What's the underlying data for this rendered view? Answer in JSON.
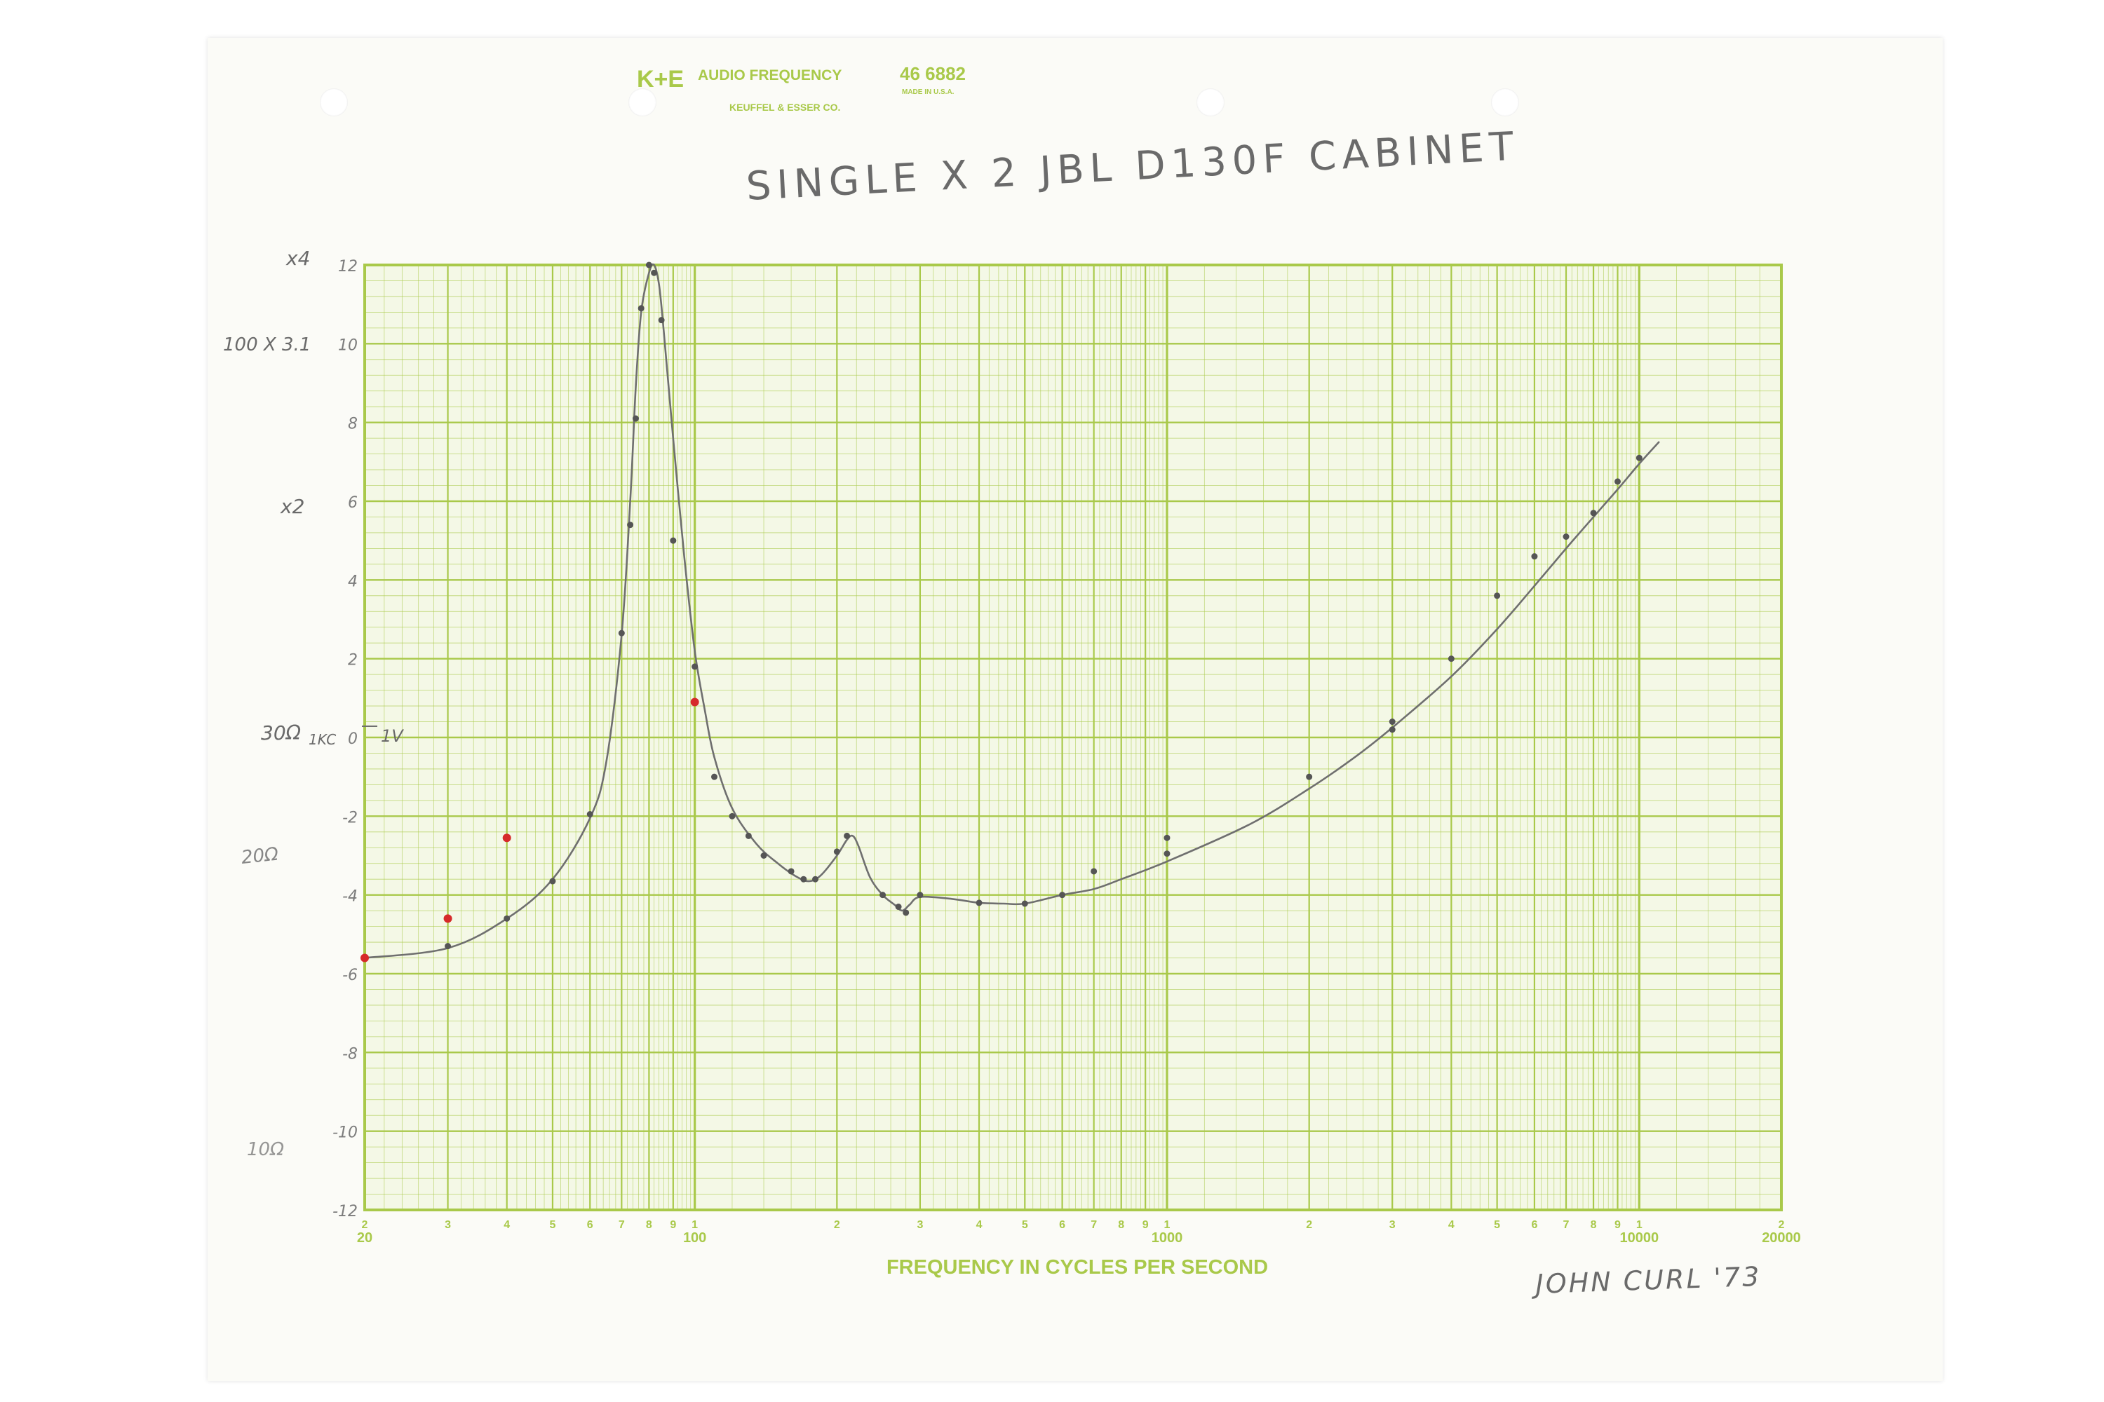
{
  "header": {
    "logo": "K+E",
    "paper_title": "AUDIO FREQUENCY",
    "maker": "KEUFFEL & ESSER CO.",
    "catalog_no": "46 6882",
    "made_in": "MADE IN U.S.A."
  },
  "colors": {
    "grid_green": "#a9c94a",
    "pencil": "#6f6f6f",
    "red_dot": "#d62a2a"
  },
  "chart_data": {
    "type": "line",
    "title": "SINGLE X 2 JBL D130F CABINET",
    "xlabel": "FREQUENCY IN CYCLES PER SECOND",
    "x_scale": "log",
    "xlim": [
      20,
      20000
    ],
    "ylim": [
      -12,
      12
    ],
    "x_ticks": {
      "major": [
        {
          "value": 20,
          "label": "20"
        },
        {
          "value": 100,
          "label": "100"
        },
        {
          "value": 1000,
          "label": "1000"
        },
        {
          "value": 10000,
          "label": "10000"
        },
        {
          "value": 20000,
          "label": "20000"
        }
      ],
      "minor": [
        {
          "value": 20,
          "label": "2"
        },
        {
          "value": 30,
          "label": "3"
        },
        {
          "value": 40,
          "label": "4"
        },
        {
          "value": 50,
          "label": "5"
        },
        {
          "value": 60,
          "label": "6"
        },
        {
          "value": 70,
          "label": "7"
        },
        {
          "value": 80,
          "label": "8"
        },
        {
          "value": 90,
          "label": "9"
        },
        {
          "value": 100,
          "label": "1"
        },
        {
          "value": 200,
          "label": "2"
        },
        {
          "value": 300,
          "label": "3"
        },
        {
          "value": 400,
          "label": "4"
        },
        {
          "value": 500,
          "label": "5"
        },
        {
          "value": 600,
          "label": "6"
        },
        {
          "value": 700,
          "label": "7"
        },
        {
          "value": 800,
          "label": "8"
        },
        {
          "value": 900,
          "label": "9"
        },
        {
          "value": 1000,
          "label": "1"
        },
        {
          "value": 2000,
          "label": "2"
        },
        {
          "value": 3000,
          "label": "3"
        },
        {
          "value": 4000,
          "label": "4"
        },
        {
          "value": 5000,
          "label": "5"
        },
        {
          "value": 6000,
          "label": "6"
        },
        {
          "value": 7000,
          "label": "7"
        },
        {
          "value": 8000,
          "label": "8"
        },
        {
          "value": 9000,
          "label": "9"
        },
        {
          "value": 10000,
          "label": "1"
        },
        {
          "value": 20000,
          "label": "2"
        }
      ]
    },
    "y_ticks": [
      {
        "value": 12,
        "label": "12"
      },
      {
        "value": 10,
        "label": "10"
      },
      {
        "value": 8,
        "label": "8"
      },
      {
        "value": 6,
        "label": "6"
      },
      {
        "value": 4,
        "label": "4"
      },
      {
        "value": 2,
        "label": "2"
      },
      {
        "value": 0,
        "label": "0"
      },
      {
        "value": -2,
        "label": "-2"
      },
      {
        "value": -4,
        "label": "-4"
      },
      {
        "value": -6,
        "label": "-6"
      },
      {
        "value": -8,
        "label": "-8"
      },
      {
        "value": -10,
        "label": "-10"
      },
      {
        "value": -12,
        "label": "-12"
      }
    ],
    "grid": true,
    "series": [
      {
        "color": "#6f6f6f",
        "points": [
          [
            20,
            -5.6
          ],
          [
            30,
            -5.35
          ],
          [
            40,
            -4.6
          ],
          [
            50,
            -3.6
          ],
          [
            60,
            -2.05
          ],
          [
            65,
            -0.6
          ],
          [
            70,
            2.6
          ],
          [
            73,
            6.0
          ],
          [
            75,
            8.9
          ],
          [
            77,
            10.8
          ],
          [
            80,
            11.8
          ],
          [
            82,
            12.0
          ],
          [
            84,
            11.5
          ],
          [
            86,
            10.3
          ],
          [
            90,
            7.6
          ],
          [
            95,
            4.6
          ],
          [
            100,
            2.2
          ],
          [
            105,
            0.7
          ],
          [
            110,
            -0.5
          ],
          [
            120,
            -1.8
          ],
          [
            135,
            -2.7
          ],
          [
            150,
            -3.2
          ],
          [
            165,
            -3.55
          ],
          [
            175,
            -3.65
          ],
          [
            185,
            -3.5
          ],
          [
            200,
            -3.0
          ],
          [
            210,
            -2.6
          ],
          [
            216,
            -2.5
          ],
          [
            222,
            -2.75
          ],
          [
            235,
            -3.55
          ],
          [
            250,
            -4.0
          ],
          [
            265,
            -4.25
          ],
          [
            275,
            -4.4
          ],
          [
            285,
            -4.25
          ],
          [
            300,
            -4.05
          ],
          [
            350,
            -4.1
          ],
          [
            400,
            -4.2
          ],
          [
            450,
            -4.22
          ],
          [
            500,
            -4.22
          ],
          [
            600,
            -4.0
          ],
          [
            700,
            -3.85
          ],
          [
            800,
            -3.6
          ],
          [
            1000,
            -3.15
          ],
          [
            1500,
            -2.2
          ],
          [
            2000,
            -1.3
          ],
          [
            2500,
            -0.5
          ],
          [
            3000,
            0.25
          ],
          [
            4000,
            1.55
          ],
          [
            5000,
            2.75
          ],
          [
            6000,
            3.85
          ],
          [
            7000,
            4.8
          ],
          [
            8000,
            5.6
          ],
          [
            9000,
            6.3
          ],
          [
            10000,
            6.95
          ],
          [
            11000,
            7.5
          ]
        ]
      }
    ],
    "measured_points": [
      [
        20,
        -5.6
      ],
      [
        30,
        -5.3
      ],
      [
        40,
        -4.6
      ],
      [
        50,
        -3.65
      ],
      [
        60,
        -1.95
      ],
      [
        70,
        2.65
      ],
      [
        73,
        5.4
      ],
      [
        75,
        8.1
      ],
      [
        77,
        10.9
      ],
      [
        80,
        12.0
      ],
      [
        82,
        11.8
      ],
      [
        85,
        10.6
      ],
      [
        90,
        5.0
      ],
      [
        100,
        1.8
      ],
      [
        110,
        -1.0
      ],
      [
        120,
        -2.0
      ],
      [
        130,
        -2.5
      ],
      [
        140,
        -3.0
      ],
      [
        160,
        -3.4
      ],
      [
        170,
        -3.6
      ],
      [
        180,
        -3.6
      ],
      [
        200,
        -2.9
      ],
      [
        210,
        -2.5
      ],
      [
        250,
        -4.0
      ],
      [
        270,
        -4.3
      ],
      [
        280,
        -4.45
      ],
      [
        300,
        -4.0
      ],
      [
        400,
        -4.2
      ],
      [
        500,
        -4.22
      ],
      [
        600,
        -4.0
      ],
      [
        700,
        -3.4
      ],
      [
        1000,
        -2.55
      ],
      [
        1000,
        -2.95
      ],
      [
        2000,
        -1.0
      ],
      [
        3000,
        0.4
      ],
      [
        3000,
        0.2
      ],
      [
        4000,
        2.0
      ],
      [
        5000,
        3.6
      ],
      [
        6000,
        4.6
      ],
      [
        7000,
        5.1
      ],
      [
        8000,
        5.7
      ],
      [
        9000,
        6.5
      ],
      [
        10000,
        7.1
      ]
    ],
    "red_points": [
      [
        20,
        -5.6
      ],
      [
        30,
        -4.6
      ],
      [
        40,
        -2.55
      ],
      [
        100,
        0.9
      ]
    ]
  },
  "annotations": {
    "title": "SINGLE X 2 JBL D130F CABINET",
    "signature": "JOHN CURL '73",
    "scale_x4": "x4",
    "scale_100": "100 X 3.1",
    "scale_x2": "x2",
    "ref_30": "30Ω",
    "ref_1kc": "1KC",
    "ref_1v": "1V",
    "ref_20": "20Ω",
    "ref_10": "10Ω"
  }
}
